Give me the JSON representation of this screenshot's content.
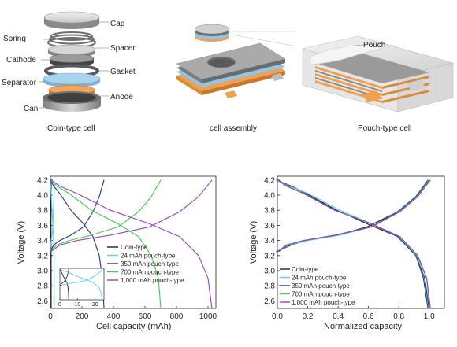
{
  "top": {
    "coin_parts": [
      "Cap",
      "Spring",
      "Spacer",
      "Cathode",
      "Gasket",
      "Separator",
      "Anode",
      "Can"
    ],
    "captions": {
      "coin": "Coin-type cell",
      "assembly": "cell assembly",
      "pouch": "Pouch-type cell"
    },
    "pouch_label": "Pouch"
  },
  "colors": {
    "coin": "#222222",
    "p24": "#5bd0e6",
    "p350": "#2c2c8c",
    "p700": "#3fcc4a",
    "p1000": "#9a3fc4",
    "separator": "#8fc6e6",
    "anode": "#f0a050",
    "metal": "#9a9a9a"
  },
  "chart_data": [
    {
      "type": "line",
      "xlabel": "Cell capacity (mAh)",
      "ylabel": "Voltage (V)",
      "xlim": [
        0,
        1050
      ],
      "ylim": [
        2.5,
        4.25
      ],
      "xticks": [
        "0",
        "200",
        "400",
        "600",
        "800",
        "1000"
      ],
      "yticks": [
        "2.6",
        "2.8",
        "3.0",
        "3.2",
        "3.4",
        "3.6",
        "3.8",
        "4.0",
        "4.2"
      ],
      "legend_position": "center-right",
      "series": [
        {
          "name": "Coin-type",
          "color_key": "coin",
          "cap": 5,
          "charge": [
            [
              0,
              3.25
            ],
            [
              0.5,
              3.34
            ],
            [
              1,
              3.4
            ],
            [
              2,
              3.47
            ],
            [
              3,
              3.58
            ],
            [
              4,
              3.78
            ],
            [
              4.6,
              3.98
            ],
            [
              5,
              4.2
            ]
          ],
          "discharge": [
            [
              0,
              4.2
            ],
            [
              0.5,
              4.12
            ],
            [
              1,
              4.02
            ],
            [
              2,
              3.8
            ],
            [
              3,
              3.62
            ],
            [
              4,
              3.45
            ],
            [
              4.6,
              3.2
            ],
            [
              4.85,
              2.9
            ],
            [
              5,
              2.5
            ]
          ]
        },
        {
          "name": "24 mAh pouch-type",
          "color_key": "p24",
          "cap": 24,
          "charge": [
            [
              0,
              3.25
            ],
            [
              2,
              3.34
            ],
            [
              5,
              3.4
            ],
            [
              10,
              3.47
            ],
            [
              15,
              3.58
            ],
            [
              19,
              3.78
            ],
            [
              22,
              3.98
            ],
            [
              24,
              4.2
            ]
          ],
          "discharge": [
            [
              0,
              4.2
            ],
            [
              2,
              4.12
            ],
            [
              5,
              4.02
            ],
            [
              10,
              3.8
            ],
            [
              15,
              3.62
            ],
            [
              19,
              3.45
            ],
            [
              22,
              3.2
            ],
            [
              23.3,
              2.9
            ],
            [
              24,
              2.5
            ]
          ]
        },
        {
          "name": "350 mAh pouch-type",
          "color_key": "p350",
          "cap": 340,
          "charge": [
            [
              0,
              3.25
            ],
            [
              20,
              3.34
            ],
            [
              60,
              3.4
            ],
            [
              130,
              3.47
            ],
            [
              210,
              3.58
            ],
            [
              270,
              3.78
            ],
            [
              310,
              3.98
            ],
            [
              340,
              4.2
            ]
          ],
          "discharge": [
            [
              0,
              4.2
            ],
            [
              20,
              4.12
            ],
            [
              60,
              4.02
            ],
            [
              130,
              3.8
            ],
            [
              210,
              3.62
            ],
            [
              270,
              3.45
            ],
            [
              310,
              3.2
            ],
            [
              330,
              2.9
            ],
            [
              340,
              2.5
            ]
          ]
        },
        {
          "name": "700 mAh pouch-type",
          "color_key": "p700",
          "cap": 700,
          "charge": [
            [
              0,
              3.25
            ],
            [
              40,
              3.34
            ],
            [
              120,
              3.4
            ],
            [
              260,
              3.47
            ],
            [
              430,
              3.58
            ],
            [
              560,
              3.78
            ],
            [
              640,
              3.98
            ],
            [
              700,
              4.2
            ]
          ],
          "discharge": [
            [
              0,
              4.2
            ],
            [
              40,
              4.12
            ],
            [
              120,
              4.02
            ],
            [
              260,
              3.8
            ],
            [
              430,
              3.62
            ],
            [
              560,
              3.45
            ],
            [
              640,
              3.2
            ],
            [
              685,
              2.9
            ],
            [
              700,
              2.5
            ]
          ]
        },
        {
          "name": "1,000 mAh pouch-type",
          "color_key": "p1000",
          "cap": 1025,
          "charge": [
            [
              0,
              3.25
            ],
            [
              60,
              3.34
            ],
            [
              170,
              3.4
            ],
            [
              380,
              3.47
            ],
            [
              630,
              3.58
            ],
            [
              820,
              3.78
            ],
            [
              940,
              3.98
            ],
            [
              1025,
              4.2
            ]
          ],
          "discharge": [
            [
              0,
              4.2
            ],
            [
              60,
              4.12
            ],
            [
              170,
              4.02
            ],
            [
              380,
              3.8
            ],
            [
              630,
              3.62
            ],
            [
              820,
              3.45
            ],
            [
              940,
              3.2
            ],
            [
              1000,
              2.9
            ],
            [
              1025,
              2.5
            ]
          ]
        }
      ],
      "inset": {
        "xticks": [
          "0",
          "10",
          "20"
        ],
        "xlim": [
          0,
          25
        ]
      }
    },
    {
      "type": "line",
      "xlabel": "Normalized capacity",
      "ylabel": "Voltage (V)",
      "xlim": [
        0,
        1.1
      ],
      "ylim": [
        2.5,
        4.25
      ],
      "xticks": [
        "0.0",
        "0.2",
        "0.4",
        "0.6",
        "0.8",
        "1.0"
      ],
      "yticks": [
        "2.6",
        "2.8",
        "3.0",
        "3.2",
        "3.4",
        "3.6",
        "3.8",
        "4.0",
        "4.2"
      ],
      "legend_position": "bottom-left",
      "series_names": [
        "Coin-type",
        "24 mAh pouch-type",
        "350 mAh pouch-type",
        "700 mAh pouch-type",
        "1,000 mAh pouch-type"
      ]
    }
  ]
}
